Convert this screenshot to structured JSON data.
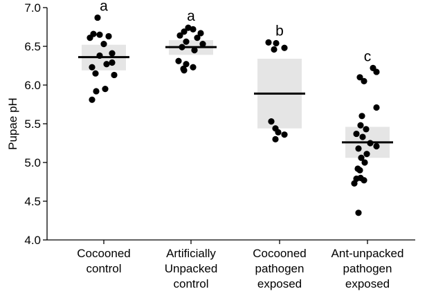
{
  "chart_data": {
    "type": "scatter",
    "title": "",
    "xlabel": "",
    "ylabel": "Pupae pH",
    "ylim": [
      4.0,
      7.0
    ],
    "yticks": [
      "4.0",
      "4.5",
      "5.0",
      "5.5",
      "6.0",
      "6.5",
      "7.0"
    ],
    "grid": false,
    "colors": {
      "points": "#000000",
      "box": "#e5e5e5",
      "median": "#000000",
      "axis": "#000000"
    },
    "categories": [
      {
        "lines": [
          "Cocooned",
          "control"
        ],
        "letter": "a",
        "median": 6.36,
        "box": [
          6.19,
          6.52
        ],
        "points": [
          6.87,
          6.66,
          6.65,
          6.63,
          6.61,
          6.53,
          6.41,
          6.38,
          6.29,
          6.27,
          6.23,
          6.15,
          6.13,
          5.95,
          5.92,
          5.81
        ]
      },
      {
        "lines": [
          "Artificially",
          "Unpacked",
          "control"
        ],
        "letter": "a",
        "median": 6.49,
        "box": [
          6.39,
          6.58
        ],
        "points": [
          6.74,
          6.72,
          6.69,
          6.67,
          6.64,
          6.61,
          6.56,
          6.53,
          6.49,
          6.45,
          6.31,
          6.27,
          6.23,
          6.21,
          6.19
        ]
      },
      {
        "lines": [
          "Cocooned",
          "pathogen",
          "exposed"
        ],
        "letter": "b",
        "median": 5.89,
        "box": [
          5.44,
          6.34
        ],
        "points": [
          6.55,
          6.54,
          6.48,
          6.46,
          5.53,
          5.44,
          5.39,
          5.36,
          5.3
        ]
      },
      {
        "lines": [
          "Ant-unpacked",
          "pathogen",
          "exposed"
        ],
        "letter": "c",
        "median": 5.26,
        "box": [
          5.06,
          5.46
        ],
        "points": [
          6.22,
          6.17,
          6.1,
          6.05,
          5.71,
          5.6,
          5.48,
          5.43,
          5.37,
          5.33,
          5.25,
          5.21,
          5.18,
          5.11,
          5.06,
          5.0,
          4.92,
          4.9,
          4.8,
          4.79,
          4.77,
          4.73,
          4.35
        ]
      }
    ]
  }
}
